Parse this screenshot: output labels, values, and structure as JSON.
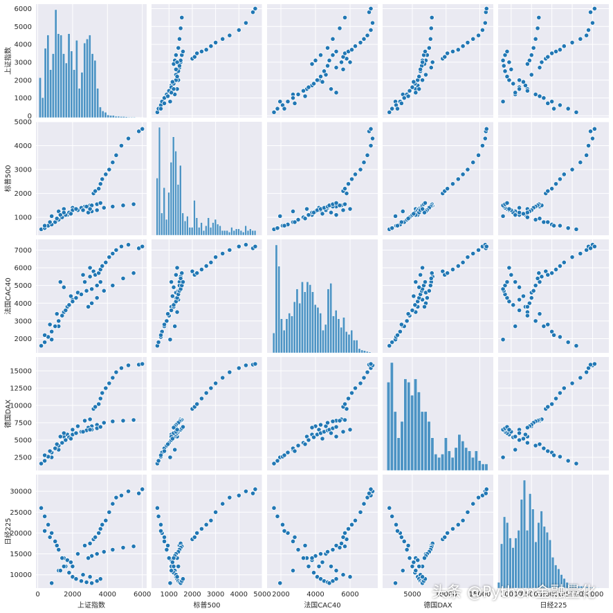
{
  "colors": {
    "panel_bg": "#eaeaf2",
    "grid": "#ffffff",
    "bar": "#4c93c4",
    "point": "#2177b4",
    "point_edge": "#ffffff"
  },
  "watermark": "头条 @Python金融量化",
  "chart_data": {
    "type": "pairplot",
    "grid": true,
    "variables": [
      {
        "name": "上证指数",
        "lim": [
          -100,
          6250
        ],
        "ticks": [
          0,
          2000,
          4000,
          6000
        ]
      },
      {
        "name": "标普500",
        "lim": [
          250,
          5000
        ],
        "ticks": [
          1000,
          2000,
          3000,
          4000,
          5000
        ]
      },
      {
        "name": "法国CAC40",
        "lim": [
          1200,
          7600
        ],
        "ticks": [
          2000,
          4000,
          6000
        ]
      },
      {
        "name": "德国DAX",
        "lim": [
          600,
          17000
        ],
        "ticks": [
          5000,
          10000,
          15000
        ]
      },
      {
        "name": "日经225",
        "lim": [
          6800,
          34000
        ],
        "ticks": [
          10000,
          15000,
          20000,
          25000,
          30000
        ]
      }
    ],
    "y_tick_labels": [
      {
        "variable": "上证指数",
        "ticks": [
          0,
          1000,
          2000,
          3000,
          4000,
          5000,
          6000
        ]
      },
      {
        "variable": "标普500",
        "ticks": [
          1000,
          2000,
          3000,
          4000,
          5000
        ]
      },
      {
        "variable": "法国CAC40",
        "ticks": [
          2000,
          3000,
          4000,
          5000,
          6000,
          7000
        ]
      },
      {
        "variable": "德国DAX",
        "ticks": [
          2500,
          5000,
          7500,
          10000,
          12500,
          15000
        ]
      },
      {
        "variable": "日经225",
        "ticks": [
          10000,
          15000,
          20000,
          25000,
          30000
        ]
      }
    ],
    "histograms": [
      {
        "variable": "上证指数",
        "bins": [
          150,
          300,
          450,
          600,
          750,
          900,
          1050,
          1200,
          1350,
          1500,
          1650,
          1800,
          1950,
          2100,
          2250,
          2400,
          2550,
          2700,
          2850,
          3000,
          3150,
          3300,
          3450,
          3600,
          3750,
          3900,
          4050,
          4200,
          4350,
          4500,
          4650,
          4800,
          4950,
          5100,
          5250,
          5400,
          5550,
          5700,
          5850,
          6000
        ],
        "values": [
          150,
          75,
          260,
          310,
          180,
          240,
          405,
          315,
          310,
          240,
          205,
          315,
          250,
          180,
          290,
          110,
          170,
          280,
          295,
          310,
          240,
          215,
          110,
          40,
          25,
          20,
          10,
          8,
          8,
          5,
          5,
          4,
          4,
          3,
          2,
          2,
          2,
          1,
          1,
          1
        ]
      },
      {
        "variable": "标普500",
        "bins": [
          500,
          600,
          700,
          800,
          900,
          1000,
          1100,
          1200,
          1300,
          1400,
          1500,
          1600,
          1700,
          1800,
          1900,
          2000,
          2100,
          2200,
          2300,
          2400,
          2500,
          2600,
          2700,
          2800,
          2900,
          3000,
          3100,
          3200,
          3300,
          3400,
          3500,
          3600,
          3700,
          3800,
          3900,
          4000,
          4100,
          4200,
          4300,
          4400,
          4500,
          4600,
          4700
        ],
        "values": [
          180,
          340,
          70,
          150,
          50,
          135,
          230,
          310,
          265,
          160,
          220,
          70,
          45,
          60,
          25,
          25,
          110,
          55,
          25,
          40,
          15,
          30,
          55,
          25,
          40,
          50,
          35,
          30,
          15,
          15,
          15,
          10,
          25,
          15,
          20,
          20,
          15,
          10,
          30,
          15,
          20,
          15,
          15
        ]
      },
      {
        "variable": "法国CAC40",
        "bins": [
          1600,
          1750,
          1900,
          2050,
          2200,
          2350,
          2500,
          2650,
          2800,
          2950,
          3100,
          3250,
          3400,
          3550,
          3700,
          3850,
          4000,
          4150,
          4300,
          4450,
          4600,
          4750,
          4900,
          5050,
          5200,
          5350,
          5500,
          5650,
          5800,
          5950,
          6100,
          6250,
          6400,
          6550,
          6700,
          6850,
          7000,
          7150
        ],
        "values": [
          70,
          380,
          305,
          120,
          80,
          120,
          140,
          130,
          180,
          225,
          175,
          250,
          215,
          250,
          240,
          215,
          170,
          160,
          140,
          80,
          100,
          225,
          245,
          130,
          150,
          120,
          90,
          125,
          75,
          65,
          80,
          45,
          45,
          15,
          10,
          8,
          5,
          3
        ]
      },
      {
        "variable": "德国DAX",
        "bins": [
          1500,
          2000,
          2500,
          3000,
          3500,
          4000,
          4500,
          5000,
          5500,
          6000,
          6500,
          7000,
          7500,
          8000,
          8500,
          9000,
          9500,
          10000,
          10500,
          11000,
          11500,
          12000,
          12500,
          13000,
          13500,
          14000,
          14500,
          15000,
          15500,
          16000
        ],
        "values": [
          135,
          165,
          90,
          50,
          75,
          140,
          135,
          115,
          140,
          120,
          90,
          90,
          75,
          50,
          25,
          20,
          25,
          50,
          30,
          20,
          35,
          55,
          45,
          35,
          30,
          20,
          30,
          15,
          10,
          10
        ]
      },
      {
        "variable": "日经225",
        "bins": [
          7000,
          7700,
          8400,
          9100,
          9800,
          10500,
          11200,
          11900,
          12600,
          13300,
          14000,
          14700,
          15400,
          16100,
          16800,
          17500,
          18200,
          18900,
          19600,
          20300,
          21000,
          21700,
          22400,
          23100,
          23800,
          24500,
          25200,
          25900,
          26600,
          27300,
          28000,
          28700,
          29400,
          30100,
          30800,
          31500
        ],
        "values": [
          15,
          115,
          185,
          170,
          130,
          105,
          130,
          150,
          230,
          280,
          150,
          245,
          205,
          120,
          170,
          200,
          160,
          145,
          125,
          80,
          60,
          50,
          35,
          25,
          15,
          10,
          10,
          10,
          5,
          5,
          5,
          3,
          2,
          2,
          1,
          1
        ]
      }
    ],
    "scatter_series": [
      {
        "points": [
          [
            800,
            1050,
            1950,
            2500,
            8000
          ],
          [
            1200,
            1250,
            2700,
            3600,
            11000
          ],
          [
            1500,
            1350,
            3500,
            5500,
            14000
          ],
          [
            1700,
            1100,
            3800,
            5800,
            13500
          ],
          [
            2000,
            1400,
            4200,
            6500,
            12000
          ],
          [
            2300,
            1300,
            4600,
            7000,
            15000
          ],
          [
            2700,
            1450,
            5200,
            7800,
            17000
          ],
          [
            3000,
            1500,
            5500,
            8000,
            17500
          ],
          [
            3200,
            2000,
            5800,
            9500,
            18500
          ],
          [
            3300,
            2100,
            5600,
            9800,
            19000
          ],
          [
            3500,
            2200,
            5700,
            10200,
            20000
          ],
          [
            3600,
            2400,
            5900,
            11000,
            21000
          ],
          [
            3700,
            2600,
            6100,
            11800,
            22000
          ],
          [
            3900,
            2800,
            6300,
            12500,
            23000
          ],
          [
            4100,
            3000,
            6600,
            13200,
            25000
          ],
          [
            4300,
            3300,
            6800,
            14000,
            27000
          ],
          [
            4500,
            3600,
            7000,
            14800,
            28500
          ],
          [
            4800,
            4000,
            7200,
            15400,
            29000
          ],
          [
            5200,
            4300,
            7300,
            15800,
            30000
          ],
          [
            5800,
            4600,
            7100,
            15900,
            29500
          ],
          [
            6000,
            4700,
            7200,
            16000,
            30500
          ],
          [
            5500,
            1550,
            5700,
            7900,
            16800
          ],
          [
            4900,
            1500,
            5400,
            7800,
            16500
          ],
          [
            4300,
            1450,
            5000,
            7700,
            16000
          ],
          [
            3800,
            1400,
            4700,
            7500,
            15500
          ],
          [
            3400,
            1300,
            4300,
            7200,
            15000
          ],
          [
            3100,
            1250,
            4000,
            7000,
            14500
          ],
          [
            2900,
            1200,
            3800,
            6800,
            14000
          ]
        ]
      },
      {
        "points": [
          [
            200,
            500,
            1600,
            1600,
            26000
          ],
          [
            400,
            550,
            1800,
            2000,
            24000
          ],
          [
            600,
            650,
            2100,
            2600,
            22000
          ],
          [
            800,
            700,
            2400,
            3200,
            20000
          ],
          [
            1000,
            800,
            2700,
            3800,
            18000
          ],
          [
            1200,
            900,
            3000,
            4200,
            16000
          ],
          [
            1400,
            1000,
            3300,
            4600,
            14000
          ],
          [
            1600,
            1100,
            3600,
            5000,
            12000
          ],
          [
            1800,
            1200,
            3900,
            5400,
            10500
          ],
          [
            2000,
            1300,
            4100,
            5800,
            9500
          ],
          [
            2200,
            1350,
            4300,
            6000,
            9000
          ],
          [
            2500,
            1400,
            4500,
            6200,
            8500
          ],
          [
            2800,
            1450,
            4700,
            6400,
            8200
          ],
          [
            3100,
            1500,
            4800,
            6500,
            8000
          ],
          [
            3400,
            1550,
            5000,
            6700,
            8500
          ],
          [
            3600,
            1600,
            5200,
            6900,
            9000
          ],
          [
            1500,
            1200,
            4900,
            6000,
            12000
          ],
          [
            1300,
            1100,
            5200,
            5500,
            11000
          ],
          [
            2600,
            1300,
            5600,
            6200,
            10000
          ],
          [
            3000,
            1350,
            6000,
            6500,
            9500
          ],
          [
            400,
            650,
            2200,
            2800,
            20500
          ],
          [
            700,
            800,
            2800,
            3400,
            19000
          ],
          [
            1100,
            950,
            3400,
            4400,
            17000
          ],
          [
            1900,
            1150,
            4400,
            5200,
            13000
          ]
        ]
      }
    ]
  }
}
